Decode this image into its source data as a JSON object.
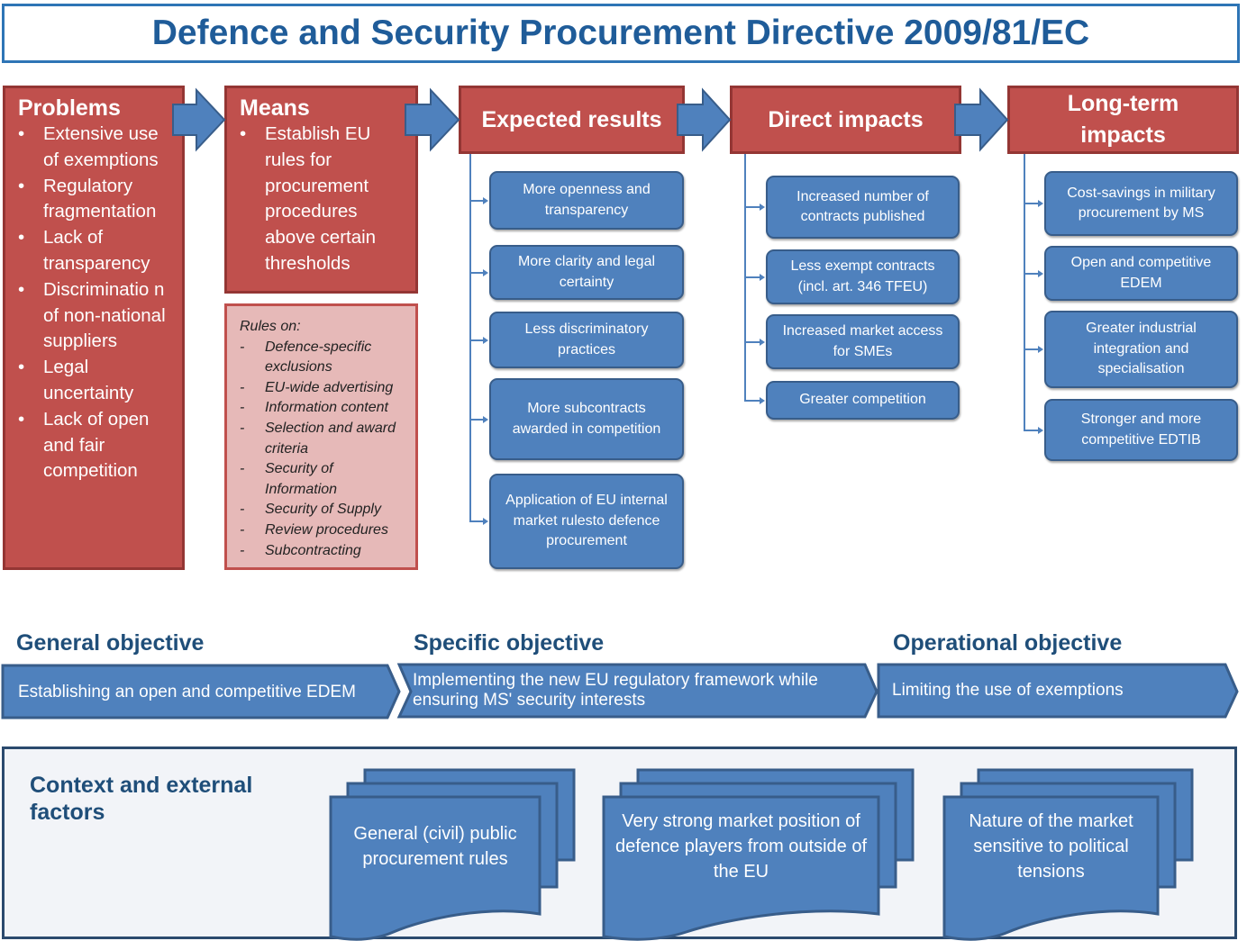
{
  "title": "Defence and Security Procurement Directive 2009/81/EC",
  "colors": {
    "red": "#c0504d",
    "blue": "#4f81bd",
    "pink": "#e6b9b8",
    "heading": "#1f4e79"
  },
  "problems": {
    "title": "Problems",
    "items": [
      "Extensive use of exemptions",
      "Regulatory fragmentation",
      "Lack of transparency",
      "Discriminatio n of non-national suppliers",
      "Legal uncertainty",
      "Lack of open and fair competition"
    ]
  },
  "means": {
    "title": "Means",
    "items": [
      "Establish EU rules for procurement procedures above certain thresholds"
    ]
  },
  "rules": {
    "title": "Rules on:",
    "items": [
      "Defence-specific exclusions",
      "EU-wide advertising",
      "Information content",
      "Selection and award criteria",
      "Security of Information",
      "Security of Supply",
      "Review procedures",
      "Subcontracting"
    ]
  },
  "expected_results": {
    "title": "Expected results",
    "items": [
      "More openness and transparency",
      "More clarity and legal certainty",
      "Less discriminatory practices",
      "More subcontracts awarded in competition",
      "Application of EU internal market rulesto defence procurement"
    ]
  },
  "direct_impacts": {
    "title": "Direct impacts",
    "items": [
      "Increased number of contracts published",
      "Less exempt contracts (incl. art. 346 TFEU)",
      "Increased market access for SMEs",
      "Greater competition"
    ]
  },
  "long_term_impacts": {
    "title": "Long-term impacts",
    "items": [
      "Cost-savings in military procurement by MS",
      "Open and competitive EDEM",
      "Greater industrial integration and specialisation",
      "Stronger and more competitive EDTIB"
    ]
  },
  "objectives": [
    {
      "label": "General objective",
      "text": "Establishing an open and competitive EDEM"
    },
    {
      "label": "Specific objective",
      "text": "Implementing the new EU regulatory framework while ensuring MS' security interests"
    },
    {
      "label": "Operational objective",
      "text": "Limiting the use of exemptions"
    }
  ],
  "context": {
    "title": "Context and external factors",
    "factors": [
      "General (civil) public procurement rules",
      "Very strong market position of defence players from outside of the EU",
      "Nature of the market sensitive to political tensions"
    ]
  }
}
